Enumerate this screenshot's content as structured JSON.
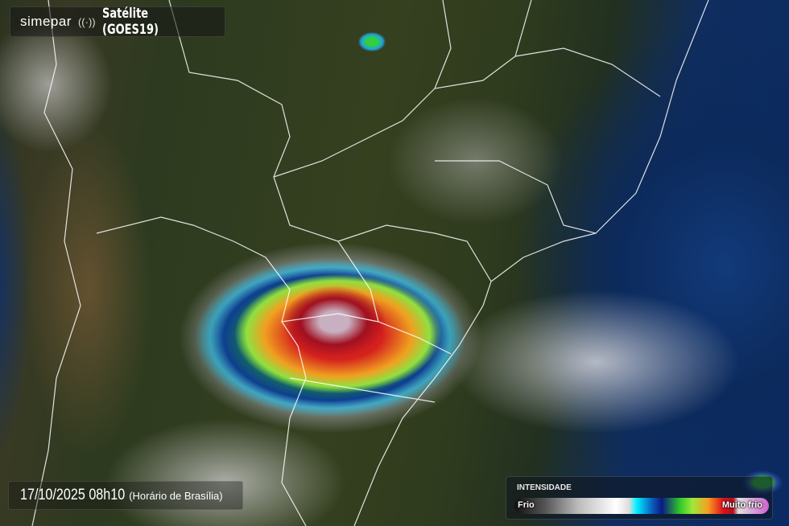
{
  "header": {
    "brand": "simepar",
    "icon": "broadcast-waves-icon",
    "title": "Satélite (GOES19)"
  },
  "timestamp": {
    "datetime": "17/10/2025 08h10",
    "timezone": "(Horário de Brasília)"
  },
  "legend": {
    "title": "INTENSIDADE",
    "min_label": "Frio",
    "max_label": "Muito frio",
    "colors": [
      "#111111",
      "#ffffff",
      "#00f0ff",
      "#0a1a80",
      "#2fc82a",
      "#f5a020",
      "#e0101e",
      "#d060d0"
    ]
  },
  "map": {
    "land_color": "#2f3b1e",
    "ocean_color": "#0c2a5c",
    "border_color": "#ffffff"
  }
}
